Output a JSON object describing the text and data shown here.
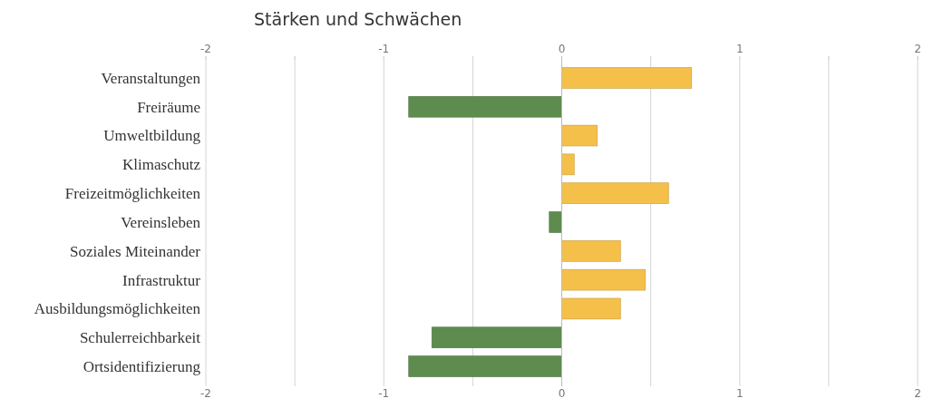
{
  "chart_data": {
    "type": "bar",
    "orientation": "horizontal",
    "title": "Stärken und Schwächen",
    "categories": [
      "Veranstaltungen",
      "Freiräume",
      "Umweltbildung",
      "Klimaschutz",
      "Freizeitmöglichkeiten",
      "Vereinsleben",
      "Soziales Miteinander",
      "Infrastruktur",
      "Ausbildungsmöglichkeiten",
      "Schulerreichbarkeit",
      "Ortsidentifizierung"
    ],
    "values": [
      0.73,
      -0.86,
      0.2,
      0.07,
      0.6,
      -0.07,
      0.33,
      0.47,
      0.33,
      -0.73,
      -0.86
    ],
    "colors": [
      "#f5c04a",
      "#5e8c4f",
      "#f5c04a",
      "#f5c04a",
      "#f5c04a",
      "#5e8c4f",
      "#f5c04a",
      "#f5c04a",
      "#f5c04a",
      "#5e8c4f",
      "#5e8c4f"
    ],
    "xlim": [
      -2,
      2
    ],
    "xticks": [
      -2,
      {
        "value": -1.5,
        "label": null
      },
      -1,
      {
        "value": -0.5,
        "label": null
      },
      0,
      {
        "value": 0.5,
        "label": null
      },
      1,
      {
        "value": 1.5,
        "label": null
      },
      2
    ],
    "x2lim": [
      -2,
      2
    ],
    "x2ticks": [
      -2,
      {
        "value": -1.5,
        "label": null
      },
      -1,
      {
        "value": -0.5,
        "label": null
      },
      0,
      {
        "value": 0.5,
        "label": null
      },
      1,
      {
        "value": 1.5,
        "label": null
      },
      2
    ],
    "grid": "x"
  }
}
